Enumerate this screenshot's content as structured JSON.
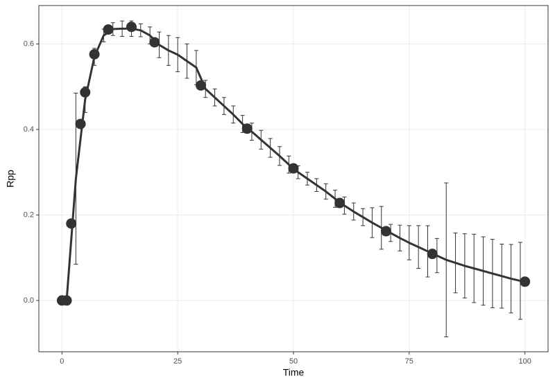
{
  "chart_data": {
    "type": "line",
    "x_label": "Time",
    "y_label": "Rpp",
    "xlim": [
      -5,
      105
    ],
    "ylim": [
      -0.12,
      0.69
    ],
    "xticks": [
      0,
      25,
      50,
      75,
      100
    ],
    "yticks": [
      {
        "value": 0,
        "label": "0.0"
      },
      0.2,
      0.4,
      0.6
    ],
    "grid": true,
    "series": [
      {
        "color": "#333333",
        "x": [
          0,
          1,
          3,
          5,
          7,
          9,
          11,
          13,
          15,
          17,
          19,
          21,
          23,
          25,
          27,
          29,
          31,
          33,
          35,
          37,
          39,
          41,
          43,
          45,
          47,
          49,
          51,
          53,
          55,
          57,
          59,
          61,
          63,
          65,
          67,
          69,
          71,
          73,
          75,
          77,
          79,
          81,
          83,
          85,
          87,
          89,
          91,
          93,
          95,
          97,
          99
        ],
        "values": [
          0,
          0,
          0.285,
          0.47,
          0.57,
          0.62,
          0.635,
          0.636,
          0.636,
          0.632,
          0.62,
          0.598,
          0.585,
          0.575,
          0.56,
          0.545,
          0.495,
          0.475,
          0.455,
          0.435,
          0.413,
          0.395,
          0.376,
          0.357,
          0.338,
          0.318,
          0.3,
          0.285,
          0.27,
          0.255,
          0.238,
          0.222,
          0.208,
          0.195,
          0.182,
          0.17,
          0.158,
          0.146,
          0.135,
          0.125,
          0.115,
          0.105,
          0.095,
          0.088,
          0.081,
          0.075,
          0.069,
          0.063,
          0.057,
          0.051,
          0.046
        ],
        "errors": [
          null,
          null,
          0.2,
          0.03,
          0.02,
          0.015,
          0.015,
          0.018,
          0.018,
          0.015,
          0.02,
          0.03,
          0.035,
          0.04,
          0.04,
          0.04,
          0.02,
          0.02,
          0.02,
          0.02,
          0.02,
          0.02,
          0.022,
          0.022,
          0.022,
          0.02,
          0.015,
          0.015,
          0.015,
          0.018,
          0.02,
          0.02,
          0.02,
          0.02,
          0.035,
          0.05,
          0.02,
          0.03,
          0.04,
          0.05,
          0.06,
          0.04,
          0.18,
          0.07,
          0.075,
          0.08,
          0.08,
          0.08,
          0.075,
          0.08,
          0.09
        ]
      },
      {
        "color": "#333333",
        "x": [
          0,
          1,
          2,
          4,
          5,
          7,
          10,
          15,
          20,
          30,
          40,
          50,
          60,
          70,
          80,
          100
        ],
        "values": [
          0,
          0,
          0.18,
          0.413,
          0.487,
          0.576,
          0.634,
          0.64,
          0.604,
          0.503,
          0.402,
          0.309,
          0.228,
          0.162,
          0.109,
          0.044
        ]
      }
    ]
  }
}
